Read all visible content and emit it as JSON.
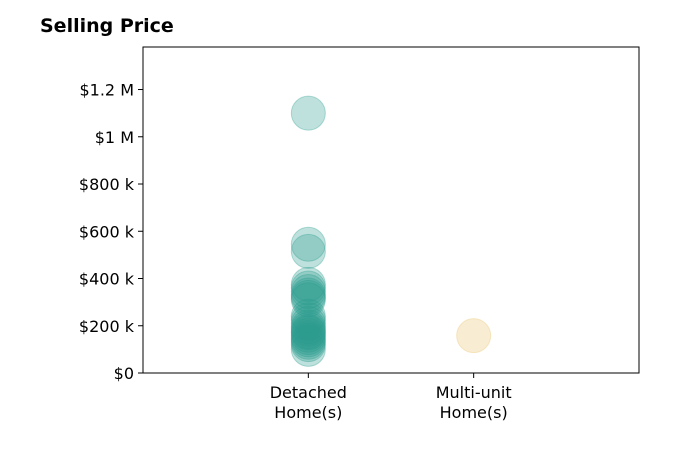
{
  "chart_data": {
    "type": "scatter",
    "title": "Selling Price",
    "xlabel": "",
    "ylabel": "",
    "categories": [
      "Detached\nHome(s)",
      "Multi-unit\nHome(s)"
    ],
    "xlim": [
      -1,
      2
    ],
    "ylim": [
      0,
      1380000
    ],
    "yticks": [
      {
        "value": 0,
        "label": "$0"
      },
      {
        "value": 200000,
        "label": "$200 k"
      },
      {
        "value": 400000,
        "label": "$400 k"
      },
      {
        "value": 600000,
        "label": "$600 k"
      },
      {
        "value": 800000,
        "label": "$800 k"
      },
      {
        "value": 1000000,
        "label": "$1 M"
      },
      {
        "value": 1200000,
        "label": "$1.2 M"
      }
    ],
    "grid": false,
    "series": [
      {
        "category": "Detached\nHome(s)",
        "color": "#2a9d8f",
        "values": [
          1100000,
          545000,
          515000,
          375000,
          360000,
          345000,
          330000,
          320000,
          310000,
          240000,
          225000,
          210000,
          195000,
          185000,
          175000,
          170000,
          160000,
          150000,
          140000,
          130000,
          120000,
          100000
        ]
      },
      {
        "category": "Multi-unit\nHome(s)",
        "color": "#e9c46a",
        "values": [
          158000
        ]
      }
    ]
  }
}
